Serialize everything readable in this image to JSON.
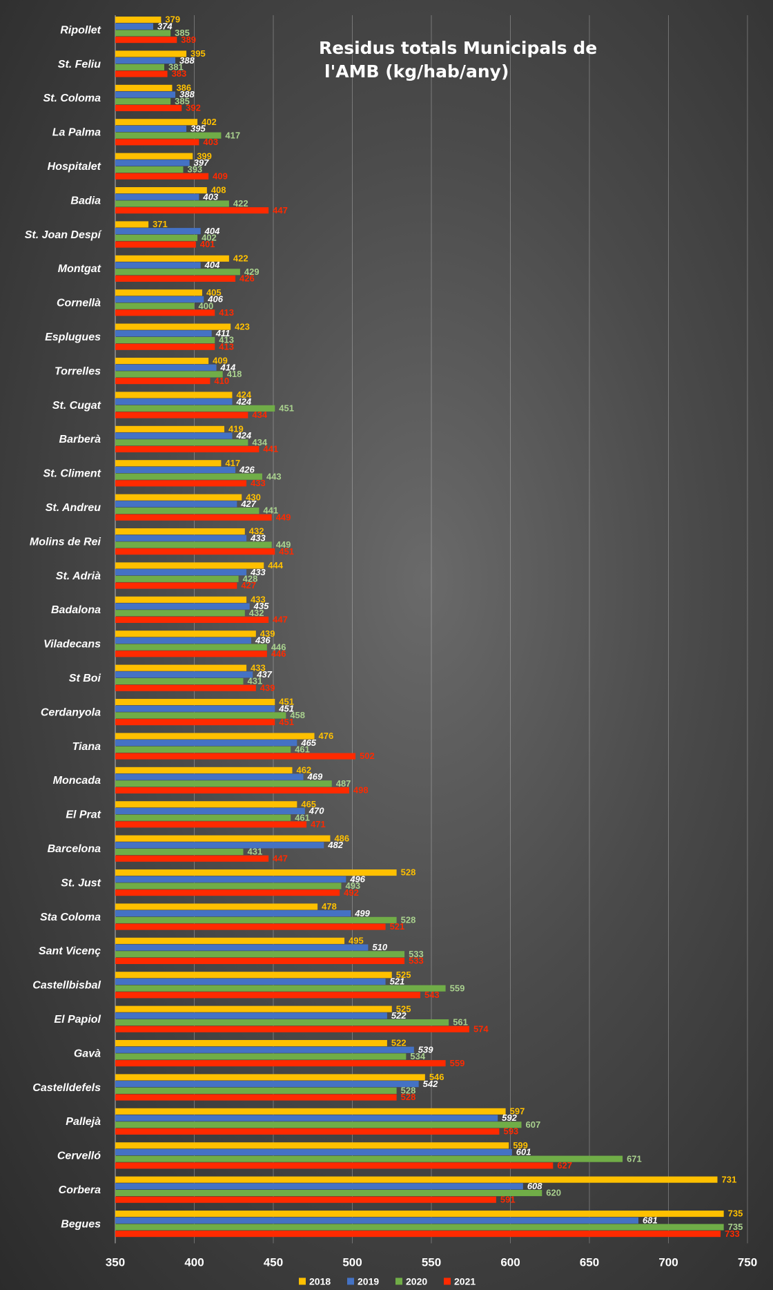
{
  "chart_data": {
    "type": "bar",
    "orientation": "horizontal",
    "title_lines": [
      "Residus totals Municipals de",
      "l'AMB  (kg/hab/any)"
    ],
    "xlim": [
      350,
      750
    ],
    "xticks": [
      350,
      400,
      450,
      500,
      550,
      600,
      650,
      700,
      750
    ],
    "grid": true,
    "legend_position": "bottom",
    "categories": [
      "Ripollet",
      "St. Feliu",
      "St. Coloma",
      "La Palma",
      "Hospitalet",
      "Badia",
      "St. Joan Despí",
      "Montgat",
      "Cornellà",
      "Esplugues",
      "Torrelles",
      "St. Cugat",
      "Barberà",
      "St. Climent",
      "St. Andreu",
      "Molins de Rei",
      "St. Adrià",
      "Badalona",
      "Viladecans",
      "St Boi",
      "Cerdanyola",
      "Tiana",
      "Moncada",
      "El Prat",
      "Barcelona",
      "St. Just",
      "Sta Coloma",
      "Sant Vicenç",
      "Castellbisbal",
      "El Papiol",
      "Gavà",
      "Castelldefels",
      "Pallejà",
      "Cervelló",
      "Corbera",
      "Begues"
    ],
    "series": [
      {
        "name": "2018",
        "color": "#FFC000",
        "label_color": "#FFC000",
        "values": [
          379,
          395,
          386,
          402,
          399,
          408,
          371,
          422,
          405,
          423,
          409,
          424,
          419,
          417,
          430,
          432,
          444,
          433,
          439,
          433,
          451,
          476,
          462,
          465,
          486,
          528,
          478,
          495,
          525,
          525,
          522,
          546,
          597,
          599,
          731,
          735
        ]
      },
      {
        "name": "2019",
        "color": "#4472C4",
        "label_color": "#FFFFFF",
        "values": [
          374,
          388,
          388,
          395,
          397,
          403,
          404,
          404,
          406,
          411,
          414,
          424,
          424,
          426,
          427,
          433,
          433,
          435,
          436,
          437,
          451,
          465,
          469,
          470,
          482,
          496,
          499,
          510,
          521,
          522,
          539,
          542,
          592,
          601,
          608,
          681
        ]
      },
      {
        "name": "2020",
        "color": "#70AD47",
        "label_color": "#A9D18E",
        "values": [
          385,
          381,
          385,
          417,
          393,
          422,
          402,
          429,
          400,
          413,
          418,
          451,
          434,
          443,
          441,
          449,
          428,
          432,
          446,
          431,
          458,
          461,
          487,
          461,
          431,
          493,
          528,
          533,
          559,
          561,
          534,
          528,
          607,
          671,
          620,
          735
        ]
      },
      {
        "name": "2021",
        "color": "#FF2A00",
        "label_color": "#FF2A00",
        "values": [
          389,
          383,
          392,
          403,
          409,
          447,
          401,
          426,
          413,
          413,
          410,
          434,
          441,
          433,
          449,
          451,
          427,
          447,
          446,
          439,
          451,
          502,
          498,
          471,
          447,
          492,
          521,
          533,
          543,
          574,
          559,
          528,
          593,
          627,
          591,
          733
        ]
      }
    ]
  }
}
